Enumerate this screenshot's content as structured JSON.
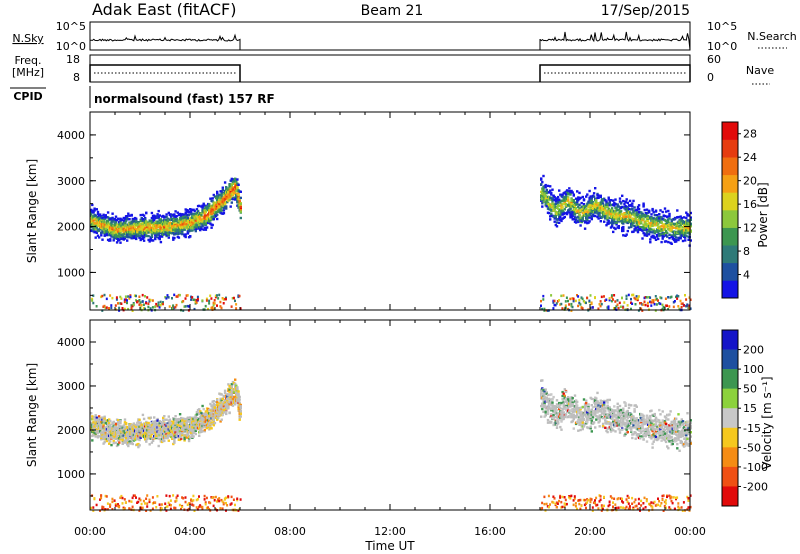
{
  "header": {
    "station": "Adak East (fitACF)",
    "beam": "Beam 21",
    "date": "17/Sep/2015"
  },
  "strip_labels": {
    "nsky": "N.Sky",
    "nsearch": "N.Search",
    "freq": "Freq.",
    "freq_unit": "[MHz]",
    "nave": "Nave",
    "cpid": "CPID",
    "nsky_ticks": [
      "10^5",
      "10^0"
    ],
    "nsearch_ticks": [
      "10^5",
      "10^0"
    ],
    "freq_ticks": [
      "18",
      "8"
    ],
    "nave_ticks": [
      "60",
      "0"
    ],
    "cpid_text": "normalsound (fast) 157 RF"
  },
  "time_axis": {
    "label": "Time UT",
    "ticks": [
      "00:00",
      "04:00",
      "08:00",
      "12:00",
      "16:00",
      "20:00",
      "00:00"
    ],
    "range_hours": [
      0,
      24
    ]
  },
  "range_axis": {
    "label": "Slant Range [km]",
    "ticks": [
      "1000",
      "2000",
      "3000",
      "4000"
    ],
    "range_km": [
      180,
      4500
    ]
  },
  "colors": {
    "power_scale": [
      "#1414e6",
      "#1e50a0",
      "#2e7a78",
      "#3c9650",
      "#8cc83c",
      "#dcd21e",
      "#f5a014",
      "#f06e0f",
      "#e63c0f",
      "#e10a0a"
    ],
    "velocity_scale": [
      "#e10a0a",
      "#f05014",
      "#f58c14",
      "#f5c81e",
      "#c8c8c8",
      "#8cd23c",
      "#3c9650",
      "#1e50a0",
      "#1414c8"
    ],
    "ground_scatter": "#bdbdbd"
  },
  "chart_data": [
    {
      "type": "heatmap",
      "name": "power",
      "xlabel": "Time UT",
      "ylabel": "Slant Range [km]",
      "colorbar_label": "Power [dB]",
      "colorbar_ticks": [
        "4",
        "8",
        "12",
        "16",
        "20",
        "24",
        "28"
      ],
      "colorbar_range": [
        0,
        30
      ],
      "data_intervals_hours": [
        [
          0,
          6.0
        ],
        [
          18.0,
          24.0
        ]
      ],
      "band_center_km": [
        {
          "t": 0.0,
          "km": 2150
        },
        {
          "t": 1.0,
          "km": 1950
        },
        {
          "t": 2.0,
          "km": 2000
        },
        {
          "t": 3.0,
          "km": 2020
        },
        {
          "t": 4.0,
          "km": 2100
        },
        {
          "t": 4.7,
          "km": 2300
        },
        {
          "t": 5.3,
          "km": 2600
        },
        {
          "t": 5.8,
          "km": 2900
        },
        {
          "t": 6.0,
          "km": 2400
        },
        {
          "t": 18.0,
          "km": 2800
        },
        {
          "t": 18.6,
          "km": 2350
        },
        {
          "t": 19.1,
          "km": 2600
        },
        {
          "t": 19.6,
          "km": 2300
        },
        {
          "t": 20.2,
          "km": 2500
        },
        {
          "t": 20.8,
          "km": 2300
        },
        {
          "t": 21.5,
          "km": 2250
        },
        {
          "t": 22.3,
          "km": 2100
        },
        {
          "t": 23.0,
          "km": 2000
        },
        {
          "t": 24.0,
          "km": 2000
        }
      ]
    },
    {
      "type": "heatmap",
      "name": "velocity",
      "xlabel": "Time UT",
      "ylabel": "Slant Range [km]",
      "colorbar_label": "Velocity [m s⁻¹]",
      "colorbar_ticks": [
        "200",
        "100",
        "50",
        "15",
        "-15",
        "-50",
        "-100",
        "-200"
      ],
      "data_intervals_hours": [
        [
          0,
          6.0
        ],
        [
          18.0,
          24.0
        ]
      ]
    }
  ]
}
